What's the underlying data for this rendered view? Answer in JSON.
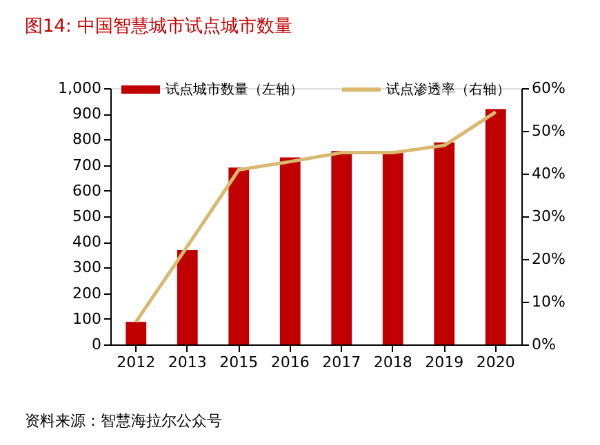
{
  "chart_data": {
    "type": "bar",
    "title": "图14:   中国智慧城市试点城市数量",
    "categories": [
      "2012",
      "2013",
      "2015",
      "2016",
      "2017",
      "2018",
      "2019",
      "2020"
    ],
    "series": [
      {
        "name": "试点城市数量（左轴）",
        "color": "#c00000",
        "values": [
          88,
          368,
          690,
          730,
          755,
          755,
          788,
          919
        ]
      },
      {
        "name": "试点渗透率（右轴）",
        "type": "line",
        "axis": "y2",
        "color": "#d9b870",
        "values": [
          5.3,
          23,
          40.9,
          42.8,
          44.9,
          44.9,
          46.6,
          54.4
        ]
      }
    ],
    "ylim": [
      0,
      1000
    ],
    "yticks": [
      0,
      100,
      200,
      300,
      400,
      500,
      600,
      700,
      800,
      900,
      {
        "value": 1000,
        "label": "1,000"
      }
    ],
    "y2lim": [
      0,
      60
    ],
    "y2ticks": [
      {
        "value": 0,
        "label": "0%"
      },
      {
        "value": 10,
        "label": "10%"
      },
      {
        "value": 20,
        "label": "20%"
      },
      {
        "value": 30,
        "label": "30%"
      },
      {
        "value": 40,
        "label": "40%"
      },
      {
        "value": 50,
        "label": "50%"
      },
      {
        "value": 60,
        "label": "60%"
      }
    ],
    "grid": false,
    "legend": "top",
    "line_style": "solid",
    "marker": "none",
    "annotations": [
      "资料来源：智慧海拉尔公众号"
    ]
  }
}
